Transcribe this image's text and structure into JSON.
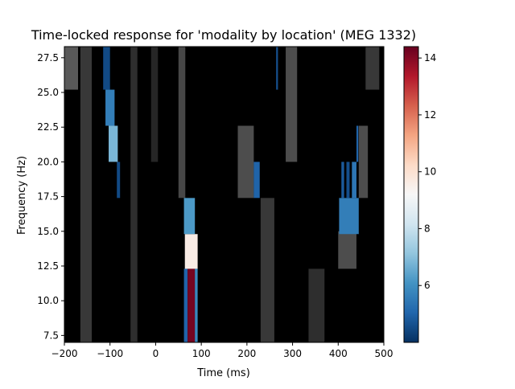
{
  "chart_data": {
    "type": "heatmap",
    "title": "Time-locked response for 'modality by location' (MEG 1332)",
    "xlabel": "Time (ms)",
    "ylabel": "Frequency (Hz)",
    "xlim": [
      -200,
      500
    ],
    "ylim": [
      7,
      28.3
    ],
    "x_ticks": [
      -200,
      -100,
      0,
      100,
      200,
      300,
      400,
      500
    ],
    "x_tick_labels": [
      "−200",
      "−100",
      "0",
      "100",
      "200",
      "300",
      "400",
      "500"
    ],
    "y_ticks": [
      7.5,
      10.0,
      12.5,
      15.0,
      17.5,
      20.0,
      22.5,
      25.0,
      27.5
    ],
    "y_tick_labels": [
      "7.5",
      "10.0",
      "12.5",
      "15.0",
      "17.5",
      "20.0",
      "22.5",
      "25.0",
      "27.5"
    ],
    "freq_bins": [
      8.2,
      10.7,
      13.2,
      15.7,
      18.2,
      20.7,
      23.2,
      25.7,
      27.9
    ],
    "colorbar": {
      "colormap": "RdBu_r",
      "range": [
        4.0,
        14.4
      ],
      "ticks": [
        6,
        8,
        10,
        12,
        14
      ],
      "tick_labels": [
        "6",
        "8",
        "10",
        "12",
        "14"
      ]
    },
    "significant_clusters": [
      {
        "t": [
          62,
          70
        ],
        "f": [
          7.0,
          12.3
        ],
        "value": 5.0
      },
      {
        "t": [
          70,
          86
        ],
        "f": [
          7.0,
          12.3
        ],
        "value": 14.2
      },
      {
        "t": [
          86,
          92
        ],
        "f": [
          7.0,
          12.3
        ],
        "value": 5.8
      },
      {
        "t": [
          64,
          92
        ],
        "f": [
          12.3,
          14.8
        ],
        "value": 9.6
      },
      {
        "t": [
          62,
          86
        ],
        "f": [
          14.8,
          17.4
        ],
        "value": 6.2
      },
      {
        "t": [
          -85,
          -78
        ],
        "f": [
          17.4,
          20.0
        ],
        "value": 4.5
      },
      {
        "t": [
          -103,
          -83
        ],
        "f": [
          20.0,
          22.6
        ],
        "value": 6.8
      },
      {
        "t": [
          -110,
          -90
        ],
        "f": [
          22.6,
          25.2
        ],
        "value": 5.6
      },
      {
        "t": [
          -115,
          -100
        ],
        "f": [
          25.2,
          28.3
        ],
        "value": 4.5
      },
      {
        "t": [
          215,
          228
        ],
        "f": [
          17.4,
          20.0
        ],
        "value": 5.0
      },
      {
        "t": [
          264,
          268
        ],
        "f": [
          25.2,
          28.3
        ],
        "value": 4.6
      },
      {
        "t": [
          402,
          445
        ],
        "f": [
          14.8,
          17.4
        ],
        "value": 5.6
      },
      {
        "t": [
          407,
          413
        ],
        "f": [
          17.4,
          20.0
        ],
        "value": 4.8
      },
      {
        "t": [
          418,
          425
        ],
        "f": [
          17.4,
          20.0
        ],
        "value": 4.6
      },
      {
        "t": [
          430,
          440
        ],
        "f": [
          17.4,
          20.0
        ],
        "value": 5.4
      },
      {
        "t": [
          440,
          444
        ],
        "f": [
          20.0,
          22.6
        ],
        "value": 5.0
      }
    ],
    "background_bands": [
      {
        "t": [
          -200,
          -170
        ],
        "f": [
          25.2,
          28.3
        ],
        "level": 0.35
      },
      {
        "t": [
          -165,
          -140
        ],
        "f": [
          7.0,
          28.3
        ],
        "level": 0.22
      },
      {
        "t": [
          -55,
          -40
        ],
        "f": [
          7.0,
          28.3
        ],
        "level": 0.18
      },
      {
        "t": [
          -10,
          5
        ],
        "f": [
          20.0,
          28.3
        ],
        "level": 0.15
      },
      {
        "t": [
          50,
          65
        ],
        "f": [
          17.4,
          28.3
        ],
        "level": 0.28
      },
      {
        "t": [
          180,
          215
        ],
        "f": [
          17.4,
          22.6
        ],
        "level": 0.3
      },
      {
        "t": [
          230,
          260
        ],
        "f": [
          7.0,
          17.4
        ],
        "level": 0.22
      },
      {
        "t": [
          285,
          310
        ],
        "f": [
          20.0,
          28.3
        ],
        "level": 0.3
      },
      {
        "t": [
          335,
          370
        ],
        "f": [
          7.0,
          12.3
        ],
        "level": 0.18
      },
      {
        "t": [
          400,
          440
        ],
        "f": [
          12.3,
          15.0
        ],
        "level": 0.3
      },
      {
        "t": [
          445,
          465
        ],
        "f": [
          17.4,
          22.6
        ],
        "level": 0.3
      },
      {
        "t": [
          460,
          490
        ],
        "f": [
          25.2,
          28.3
        ],
        "level": 0.22
      }
    ]
  }
}
